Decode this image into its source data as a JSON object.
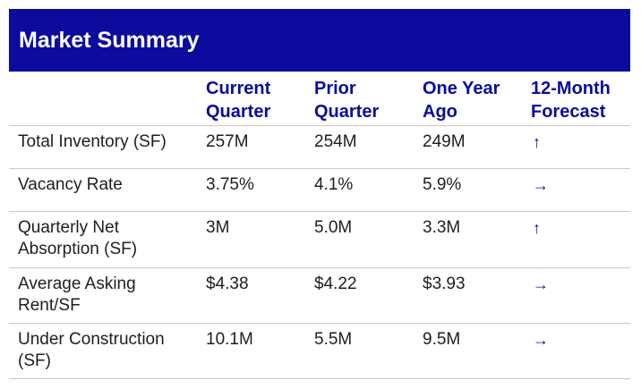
{
  "title": "Market Summary",
  "columns": [
    "Current\nQuarter",
    "Prior\nQuarter",
    "One Year\nAgo",
    "12-Month\nForecast"
  ],
  "rows": [
    {
      "label": "Total Inventory (SF)",
      "current": "257M",
      "prior": "254M",
      "year_ago": "249M",
      "forecast": "↑"
    },
    {
      "label": "Vacancy Rate",
      "current": "3.75%",
      "prior": "4.1%",
      "year_ago": "5.9%",
      "forecast": "→"
    },
    {
      "label": "Quarterly Net Absorption (SF)",
      "current": "3M",
      "prior": "5.0M",
      "year_ago": "3.3M",
      "forecast": "↑"
    },
    {
      "label": "Average Asking Rent/SF",
      "current": "$4.38",
      "prior": "$4.22",
      "year_ago": "$3.93",
      "forecast": "→"
    },
    {
      "label": "Under Construction (SF)",
      "current": "10.1M",
      "prior": "5.5M",
      "year_ago": "9.5M",
      "forecast": "→"
    }
  ],
  "colors": {
    "header_bg": "#0b0b9e",
    "header_text": "#0b0b9e",
    "rule": "#c8c8c8"
  }
}
